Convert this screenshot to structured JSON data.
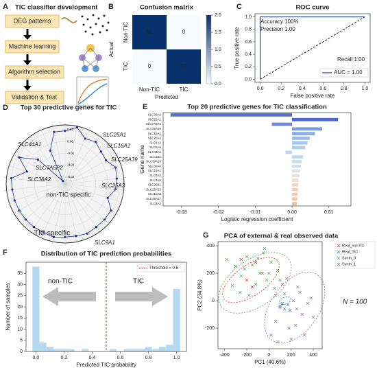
{
  "panel_labels": [
    "A",
    "B",
    "C",
    "D",
    "E",
    "F",
    "G"
  ],
  "diagram": {
    "title": "TIC classifier development",
    "steps": [
      "DEG patterns",
      "Machine learning",
      "Algorithm selection",
      "Validation & Test"
    ]
  },
  "chart_data": [
    {
      "type": "heatmap",
      "title": "Confusion matrix",
      "xlabel": "Predicted",
      "ylabel": "Actual",
      "x_categories": [
        "Non-TIC",
        "TIC"
      ],
      "y_categories": [
        "Non-TIC",
        "TIC"
      ],
      "values": [
        [
          50,
          0
        ],
        [
          0,
          50
        ]
      ],
      "clim": [
        0,
        2
      ],
      "color": "#08306b",
      "cbar_ticks": [
        {
          "value": 0,
          "label": "0.0"
        },
        0.5,
        {
          "value": 1,
          "label": "1.0"
        },
        1.5,
        {
          "value": 2,
          "label": "2.0"
        }
      ]
    },
    {
      "type": "line",
      "title": "ROC curve",
      "xlabel": "False positive rate",
      "ylabel": "True positive rate",
      "series": [
        {
          "name": "AUC = 1.00",
          "color": "#3b5ba5",
          "x": [
            0,
            0,
            1
          ],
          "values": [
            0,
            1,
            1
          ]
        }
      ],
      "xlim": [
        -0.05,
        1.05
      ],
      "ylim": [
        -0.05,
        1.05
      ],
      "xticks": [
        {
          "value": 0,
          "label": "0.0"
        },
        0.2,
        0.4,
        0.6,
        0.8,
        {
          "value": 1,
          "label": "1.0"
        }
      ],
      "yticks": [
        {
          "value": 0,
          "label": "0.0"
        },
        0.2,
        0.4,
        0.6,
        0.8,
        {
          "value": 1,
          "label": "1.0"
        }
      ],
      "annotations": [
        "Accuracy 100%",
        "Precision 1.00",
        "Recall 1.00"
      ],
      "annotation_color": "#9b2a1c",
      "legend": "lower right"
    },
    {
      "type": "radar",
      "title": "Top 30 predictive genes for TIC",
      "categories": [
        null,
        null,
        null,
        null,
        null,
        null,
        null,
        null,
        null,
        null,
        null,
        null,
        null,
        null,
        null,
        null,
        null,
        null,
        null,
        null,
        null,
        null,
        null,
        null,
        null,
        null,
        null,
        null,
        null,
        null
      ],
      "values": [
        0.009,
        0.013,
        0.006,
        0.008,
        0.005,
        0.004,
        0.009,
        0.008,
        0.007,
        0.002,
        0.009,
        0.009,
        0.009,
        0.01,
        0.009,
        0.009,
        0.01,
        0.009,
        0.009,
        0.009,
        0.009,
        0.009,
        0.009,
        0.01,
        -0.002,
        0.009,
        -0.005,
        -0.033,
        -0.005,
        0.009
      ],
      "color": "#1f2f9a",
      "rlim": [
        -0.036,
        0.014
      ],
      "rticks": [
        -0.03,
        -0.02,
        -0.01,
        {
          "value": 0,
          "label": "0.00"
        },
        0.01
      ],
      "annotations": [
        {
          "text": "SLC25A1",
          "color": "#2a2fa8"
        },
        {
          "text": "SLC16A1",
          "color": "#2a2fa8"
        },
        {
          "text": "SLC25A39",
          "color": "#2a2fa8"
        },
        {
          "text": "SLC25A3",
          "color": "#2a2fa8"
        },
        {
          "text": "SLC44A1",
          "color": "#b3301e"
        },
        {
          "text": "SLC7A5P2",
          "color": "#b3301e"
        },
        {
          "text": "SLC38A2",
          "color": "#b3301e"
        },
        {
          "text": "SLC9A1",
          "color": "#b3301e"
        }
      ],
      "region_labels": [
        {
          "text": "non-TIC specific",
          "color": "#8b2b1b"
        },
        {
          "text": "TIC specific",
          "color": "#1f2f9a"
        }
      ]
    },
    {
      "type": "barh",
      "title": "Top 20 predictive genes for TIC classification",
      "xlabel": "Logistic regression coefficient",
      "ylabel": "Gene name",
      "categories": [
        "SLC38A2",
        "SLC25A1",
        "SLC7A5P2",
        "SLC25A39",
        "SLC16A1",
        "SLC25A3",
        "SLC7A3",
        "SLC5A6",
        "SLC44A1",
        "SLC1B1",
        "SLC39A10",
        "SLC39A6",
        "SLC19A1",
        "SLC4A2",
        "SLC7A6",
        "SLC35B1",
        "SLC25A13",
        "SLC16A6",
        "SLC25A17",
        "SLC2A3"
      ],
      "values": [
        -0.033,
        0.0125,
        -0.0055,
        0.0082,
        0.0062,
        0.0048,
        0.0042,
        0.0036,
        -0.0018,
        0.003,
        0.0026,
        0.0024,
        0.0022,
        0.002,
        0.0018,
        0.0017,
        0.0016,
        0.0015,
        0.0014,
        0.0013
      ],
      "colors": [
        "#5470d0",
        "#4d6bcf",
        "#6f86dc",
        "#7b9be6",
        "#8aaeea",
        "#96bbed",
        "#a3c6ee",
        "#b0cfee",
        "#c6d3ec",
        "#bdd7ee",
        "#c8dcec",
        "#d3e0ea",
        "#dbe2e6",
        "#e2e2e0",
        "#e8ddd2",
        "#ecd8c8",
        "#efd2bd",
        "#f0cbb1",
        "#f0c4a5",
        "#efbc99"
      ],
      "xlim": [
        -0.035,
        0.016
      ],
      "xticks": [
        -0.03,
        -0.02,
        -0.01,
        {
          "value": 0,
          "label": "0.00"
        },
        0.01
      ]
    },
    {
      "type": "histogram",
      "title": "Distribution of TIC prediction probabilities",
      "xlabel": "Predicted TIC probability",
      "ylabel": "Number of samples",
      "bins": [
        -0.025,
        0.025,
        0.075,
        0.125,
        0.175,
        0.225,
        0.275,
        0.325,
        0.375,
        0.425,
        0.475,
        0.525,
        0.575,
        0.625,
        0.675,
        0.725,
        0.775,
        0.825,
        0.875,
        0.925,
        0.975,
        1.025
      ],
      "values": [
        38,
        4,
        2,
        1,
        1,
        1,
        0,
        1,
        0,
        0,
        0,
        1,
        0,
        1,
        1,
        1,
        2,
        1,
        2,
        3,
        28
      ],
      "color": "#b3daf2",
      "threshold": 0.5,
      "threshold_color": "#a0392a",
      "legend_label": "Threshold = 0.5",
      "legend": "upper right",
      "xlim": [
        -0.07,
        1.07
      ],
      "ylim": [
        0,
        40
      ],
      "xticks": [
        {
          "value": 0,
          "label": "0.0"
        },
        0.2,
        0.4,
        0.6,
        0.8,
        {
          "value": 1,
          "label": "1.0"
        }
      ],
      "yticks": [
        0,
        5,
        10,
        15,
        20,
        25,
        30,
        35
      ],
      "annotations": [
        "non-TIC",
        "TIC"
      ]
    },
    {
      "type": "scatter",
      "title": "PCA of external & real observed data",
      "xlabel": "PC1 (40.6%)",
      "ylabel": "PC2 (34.8%)",
      "series": [
        {
          "name": "Real_nonTIC",
          "color": "#d0453a",
          "x": [
            -300,
            -200,
            -120,
            -60,
            -250,
            -150
          ],
          "values": [
            250,
            150,
            280,
            200,
            300,
            100
          ]
        },
        {
          "name": "Real_TIC",
          "color": "#3b7fc4",
          "x": [
            100,
            140,
            170,
            190,
            120
          ],
          "values": [
            -40,
            -60,
            -30,
            -70,
            -20
          ]
        },
        {
          "name": "Synth_0",
          "color": "#5aaa5a",
          "x": [
            -380,
            -300,
            -250,
            -200,
            -150,
            -120,
            -80,
            -50,
            -20,
            20,
            50,
            80,
            -260,
            -180,
            -100,
            -40,
            0,
            100,
            -330,
            -220
          ],
          "values": [
            300,
            250,
            180,
            320,
            260,
            120,
            200,
            350,
            150,
            280,
            90,
            220,
            60,
            40,
            310,
            380,
            200,
            150,
            110,
            230
          ]
        },
        {
          "name": "Synth_1",
          "color": "#a070b8",
          "x": [
            20,
            60,
            100,
            140,
            180,
            220,
            260,
            300,
            350,
            400,
            80,
            120,
            200,
            240,
            280,
            320,
            160,
            60,
            380,
            250
          ],
          "values": [
            -250,
            -150,
            -50,
            50,
            -200,
            0,
            100,
            -100,
            -20,
            -120,
            -300,
            120,
            -280,
            -180,
            60,
            -250,
            160,
            40,
            20,
            -60
          ]
        }
      ],
      "xlim": [
        -460,
        480
      ],
      "ylim": [
        -350,
        430
      ],
      "xticks": [
        -400,
        -200,
        0,
        200,
        400
      ],
      "yticks": [
        -200,
        0,
        200,
        400
      ],
      "annotation": "N = 100",
      "legend": "upper right"
    }
  ]
}
